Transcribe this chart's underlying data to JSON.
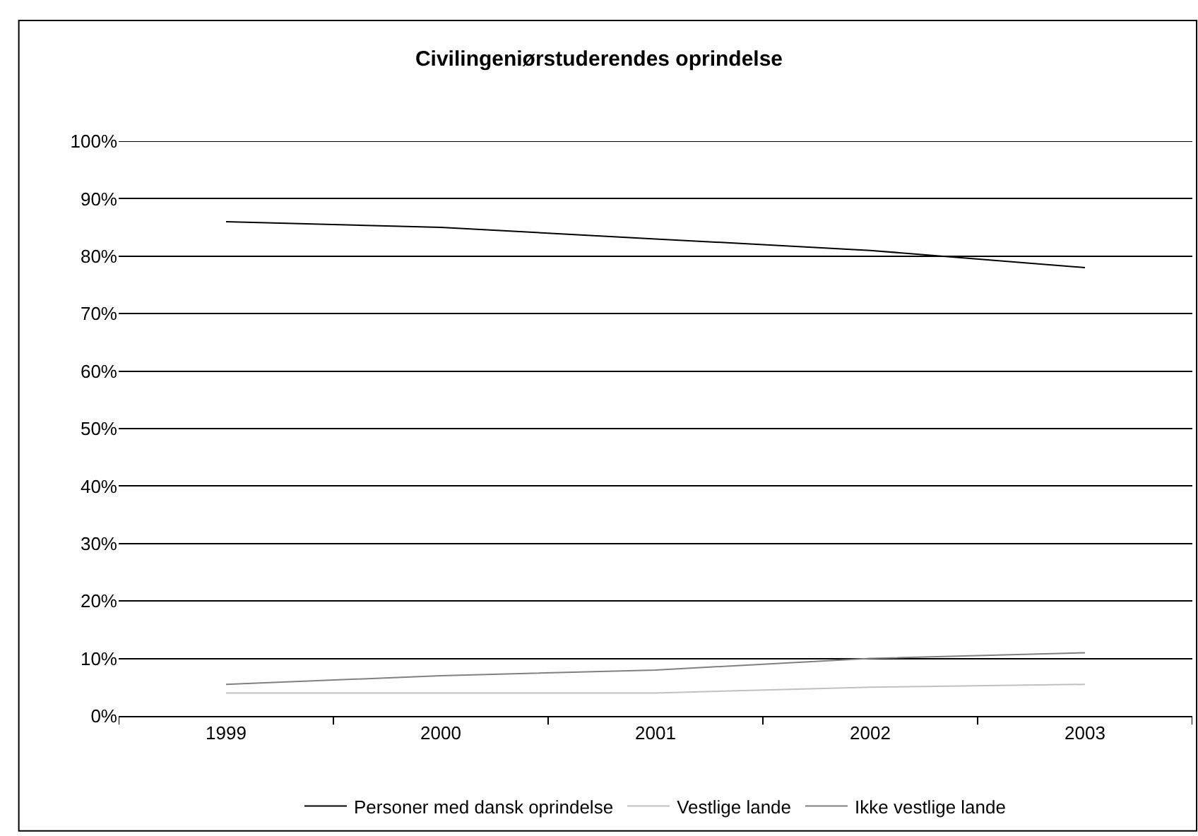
{
  "chart_data": {
    "type": "line",
    "title": "Civilingeniørstuderendes oprindelse",
    "categories": [
      "1999",
      "2000",
      "2001",
      "2002",
      "2003"
    ],
    "series": [
      {
        "name": "Personer med dansk oprindelse",
        "color": "#000000",
        "values": [
          86,
          85,
          83,
          81,
          78
        ]
      },
      {
        "name": "Vestlige lande",
        "color": "#c0c0c0",
        "values": [
          4,
          4,
          4,
          5,
          5.5
        ]
      },
      {
        "name": "Ikke vestlige lande",
        "color": "#808080",
        "values": [
          5.5,
          7,
          8,
          10,
          11
        ]
      }
    ],
    "ylim": [
      0,
      100
    ],
    "yticks": [
      {
        "value": 0,
        "label": "0%"
      },
      {
        "value": 10,
        "label": "10%"
      },
      {
        "value": 20,
        "label": "20%"
      },
      {
        "value": 30,
        "label": "30%"
      },
      {
        "value": 40,
        "label": "40%"
      },
      {
        "value": 50,
        "label": "50%"
      },
      {
        "value": 60,
        "label": "60%"
      },
      {
        "value": 70,
        "label": "70%"
      },
      {
        "value": 80,
        "label": "80%"
      },
      {
        "value": 90,
        "label": "90%"
      },
      {
        "value": 100,
        "label": "100%"
      }
    ],
    "grid": "y",
    "legend": "bottom",
    "marker": "none",
    "line_style": "solid"
  }
}
